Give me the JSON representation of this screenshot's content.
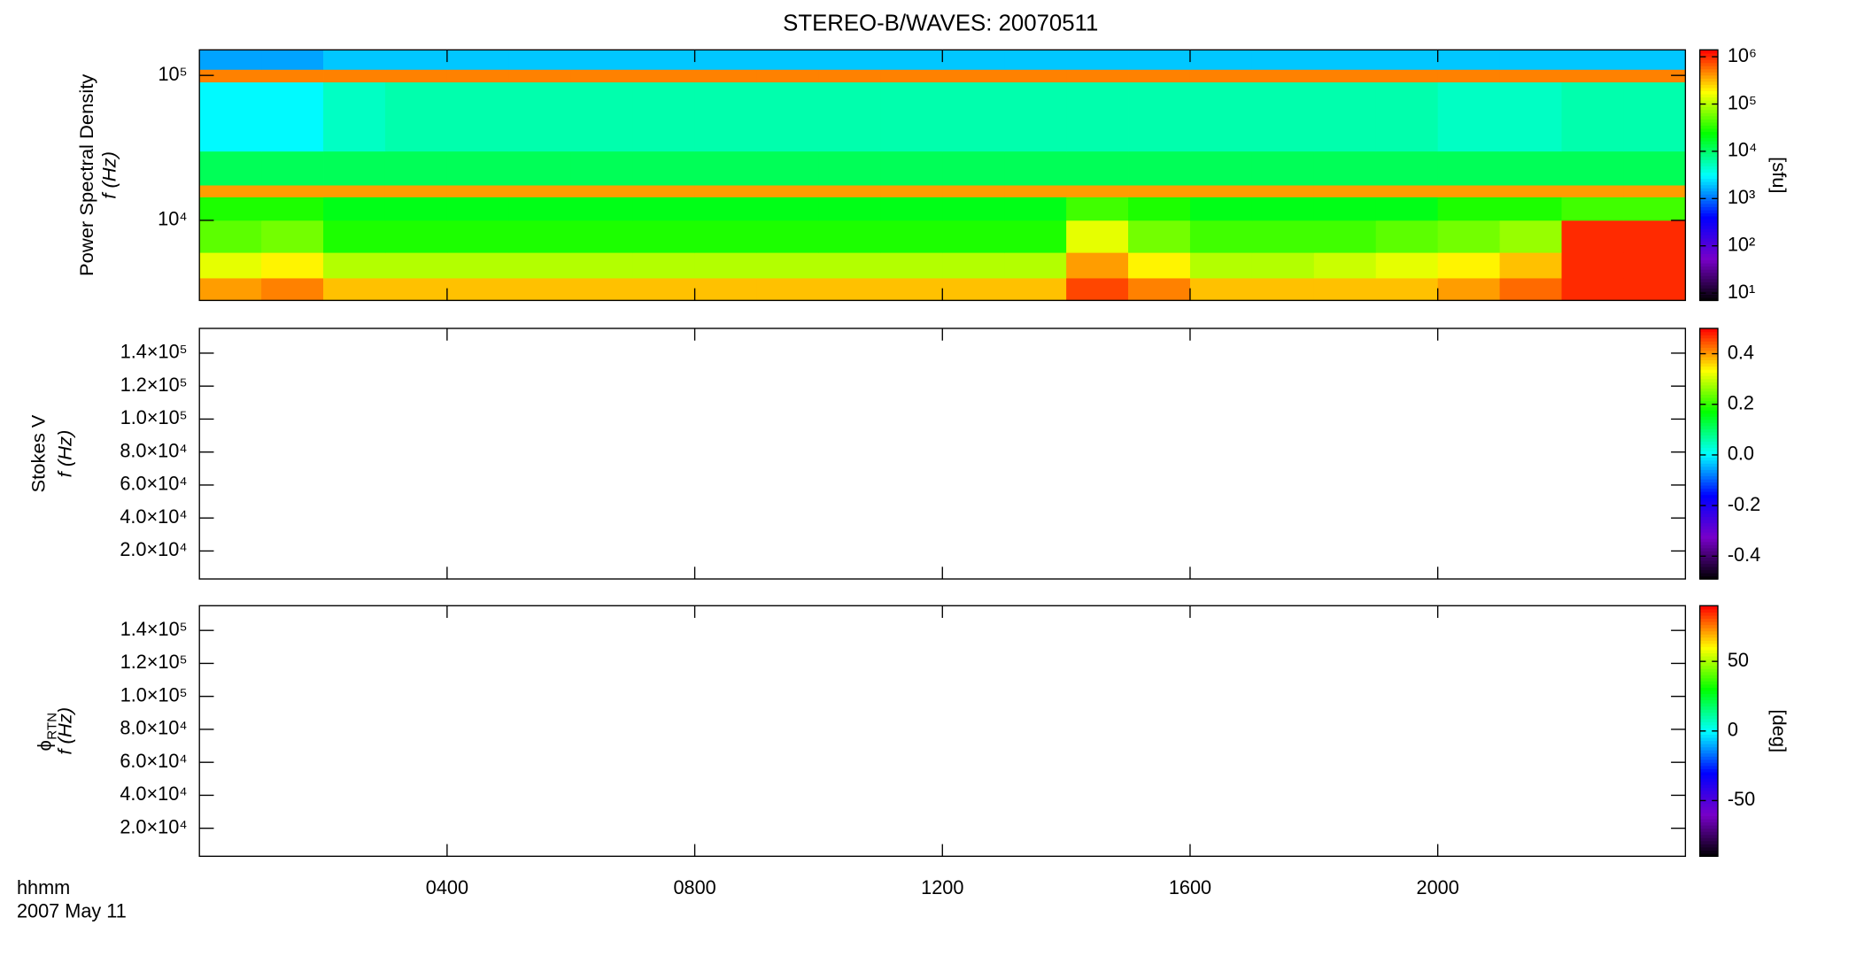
{
  "chart_data": [
    {
      "type": "heatmap",
      "title": "STEREO-B/WAVES: 20070511",
      "ylabel": "Power Spectral Density",
      "ylabel2": "f (Hz)",
      "ylog": true,
      "ylim": [
        2800,
        150000
      ],
      "yticks": [
        {
          "value": 10000,
          "label": "10⁴"
        },
        {
          "value": 100000,
          "label": "10⁵"
        }
      ],
      "x": [
        0,
        1,
        2,
        3,
        4,
        5,
        6,
        7,
        8,
        9,
        10,
        11,
        12,
        13,
        14,
        15,
        16,
        17,
        18,
        19,
        20,
        21,
        22,
        23,
        24
      ],
      "y": [
        2800,
        4000,
        6000,
        10000,
        14500,
        17500,
        30000,
        90000,
        110000,
        150000
      ],
      "z": [
        [
          400000,
          500000,
          300000,
          300000,
          300000,
          300000,
          300000,
          300000,
          300000,
          300000,
          300000,
          300000,
          300000,
          300000,
          800000,
          500000,
          300000,
          300000,
          300000,
          300000,
          400000,
          600000,
          1000000,
          1000000
        ],
        [
          150000,
          200000,
          100000,
          100000,
          100000,
          100000,
          100000,
          100000,
          100000,
          100000,
          100000,
          100000,
          100000,
          100000,
          400000,
          200000,
          100000,
          100000,
          120000,
          150000,
          200000,
          300000,
          1000000,
          1000000
        ],
        [
          50000,
          60000,
          30000,
          30000,
          30000,
          30000,
          30000,
          30000,
          30000,
          30000,
          30000,
          30000,
          30000,
          30000,
          150000,
          60000,
          40000,
          40000,
          40000,
          50000,
          60000,
          80000,
          1000000,
          1000000
        ],
        [
          30000,
          30000,
          20000,
          20000,
          20000,
          20000,
          20000,
          20000,
          20000,
          20000,
          20000,
          20000,
          20000,
          20000,
          40000,
          30000,
          20000,
          20000,
          20000,
          20000,
          30000,
          30000,
          40000,
          40000
        ],
        [
          400000,
          400000,
          400000,
          400000,
          400000,
          400000,
          400000,
          400000,
          400000,
          400000,
          400000,
          400000,
          400000,
          400000,
          400000,
          400000,
          400000,
          400000,
          400000,
          400000,
          400000,
          400000,
          400000,
          400000
        ],
        [
          12000,
          12000,
          12000,
          12000,
          12000,
          12000,
          12000,
          12000,
          12000,
          12000,
          12000,
          12000,
          12000,
          12000,
          12000,
          12000,
          12000,
          12000,
          12000,
          12000,
          12000,
          12000,
          12000,
          12000
        ],
        [
          3000,
          3000,
          5000,
          6000,
          6000,
          6000,
          6000,
          6000,
          6000,
          6000,
          6000,
          6000,
          6000,
          6000,
          6000,
          6000,
          6000,
          6000,
          6000,
          6000,
          5000,
          5000,
          6000,
          6000
        ],
        [
          500000,
          500000,
          500000,
          500000,
          500000,
          500000,
          500000,
          500000,
          500000,
          500000,
          500000,
          500000,
          500000,
          500000,
          500000,
          500000,
          500000,
          500000,
          500000,
          500000,
          500000,
          500000,
          500000,
          500000
        ],
        [
          1500,
          1500,
          2000,
          2000,
          2000,
          2000,
          2000,
          2000,
          2000,
          2000,
          2000,
          2000,
          2000,
          2000,
          2000,
          2000,
          2000,
          2000,
          2000,
          2000,
          2000,
          2000,
          2000,
          2000
        ]
      ],
      "colormap": [
        "#000000",
        "#7800c8",
        "#0000ff",
        "#00ffff",
        "#00ff00",
        "#ffff00",
        "#ff0000"
      ],
      "zlog": true,
      "zlim": [
        7,
        1400000
      ],
      "zticks": [
        {
          "value": 10,
          "label": "10¹"
        },
        {
          "value": 100,
          "label": "10²"
        },
        {
          "value": 1000,
          "label": "10³"
        },
        {
          "value": 10000,
          "label": "10⁴"
        },
        {
          "value": 100000,
          "label": "10⁵"
        },
        {
          "value": 1000000,
          "label": "10⁶"
        }
      ],
      "zlabel": "[sfu]"
    },
    {
      "type": "heatmap",
      "ylabel": "Stokes V",
      "ylabel2": "f (Hz)",
      "ylim": [
        3000,
        155000
      ],
      "yticks": [
        {
          "value": 20000,
          "label": "2.0×10⁴"
        },
        {
          "value": 40000,
          "label": "4.0×10⁴"
        },
        {
          "value": 60000,
          "label": "6.0×10⁴"
        },
        {
          "value": 80000,
          "label": "8.0×10⁴"
        },
        {
          "value": 100000,
          "label": "1.0×10⁵"
        },
        {
          "value": 120000,
          "label": "1.2×10⁵"
        },
        {
          "value": 140000,
          "label": "1.4×10⁵"
        }
      ],
      "colormap": [
        "#000000",
        "#7800c8",
        "#0000ff",
        "#00ffff",
        "#00ff00",
        "#ffff00",
        "#ff0000"
      ],
      "zlim": [
        -0.49,
        0.5
      ],
      "zticks": [
        -0.4,
        -0.2,
        {
          "value": 0,
          "label": "0.0"
        },
        0.2,
        0.4
      ]
    },
    {
      "type": "heatmap",
      "ylabel": "ϕ",
      "ylabel_sub": "RTN",
      "ylabel2": "f (Hz)",
      "ylim": [
        3000,
        155000
      ],
      "yticks": [
        {
          "value": 20000,
          "label": "2.0×10⁴"
        },
        {
          "value": 40000,
          "label": "4.0×10⁴"
        },
        {
          "value": 60000,
          "label": "6.0×10⁴"
        },
        {
          "value": 80000,
          "label": "8.0×10⁴"
        },
        {
          "value": 100000,
          "label": "1.0×10⁵"
        },
        {
          "value": 120000,
          "label": "1.2×10⁵"
        },
        {
          "value": 140000,
          "label": "1.4×10⁵"
        }
      ],
      "colormap": [
        "#000000",
        "#7800c8",
        "#0000ff",
        "#00ffff",
        "#00ff00",
        "#ffff00",
        "#ff0000"
      ],
      "zlim": [
        -90,
        90
      ],
      "zticks": [
        -50,
        0,
        50
      ],
      "zlabel": "[deg]",
      "xlabel": "hhmm",
      "date": "2007 May 11",
      "xlim": [
        0,
        24
      ],
      "xticks": [
        {
          "value": 4,
          "label": "0400"
        },
        {
          "value": 8,
          "label": "0800"
        },
        {
          "value": 12,
          "label": "1200"
        },
        {
          "value": 16,
          "label": "1600"
        },
        {
          "value": 20,
          "label": "2000"
        }
      ]
    }
  ]
}
